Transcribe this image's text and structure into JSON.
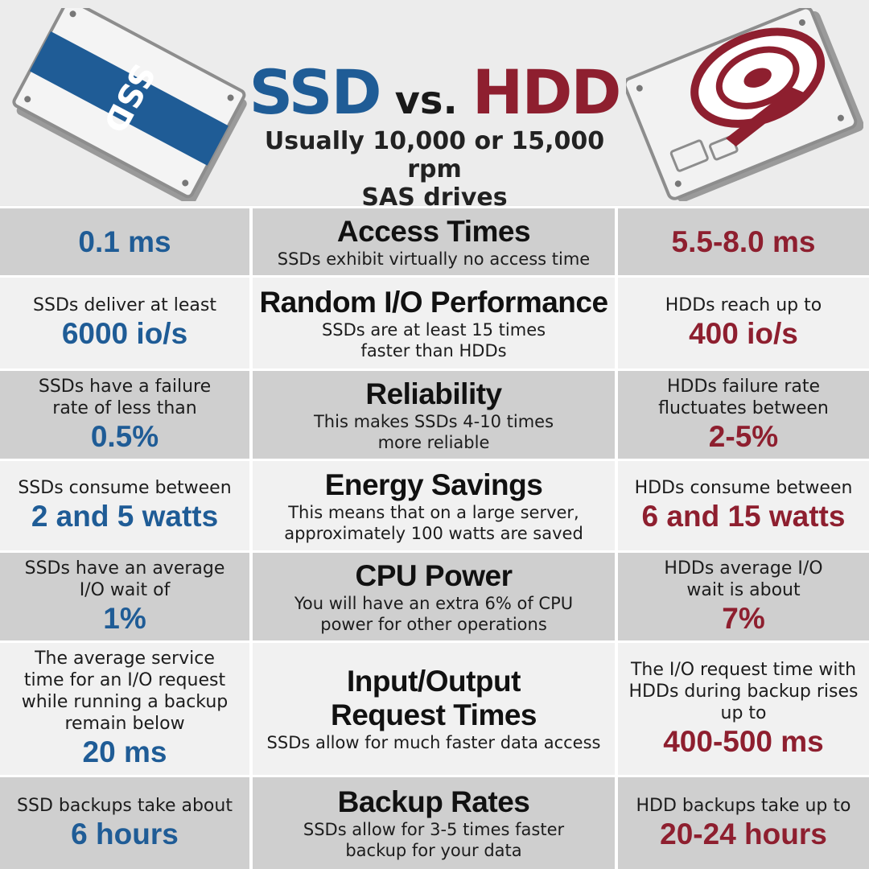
{
  "header": {
    "title_ssd": "SSD",
    "title_vs": "vs.",
    "title_hdd": "HDD",
    "subtitle_line1": "Usually 10,000 or 15,000 rpm",
    "subtitle_line2": "SAS drives",
    "ssd_label": "SSD"
  },
  "colors": {
    "ssd_blue": "#1f5c96",
    "hdd_red": "#8e1f2f",
    "row_dark": "#cfcfcf",
    "row_light": "#f1f1f1"
  },
  "rows": [
    {
      "title": "Access Times",
      "desc": "SSDs exhibit virtually no access time",
      "ssd_label": "",
      "ssd_value": "0.1 ms",
      "hdd_label": "",
      "hdd_value": "5.5-8.0 ms"
    },
    {
      "title": "Random I/O Performance",
      "desc": "SSDs are at least 15 times faster than HDDs",
      "ssd_label": "SSDs deliver at least",
      "ssd_value": "6000 io/s",
      "hdd_label": "HDDs reach up to",
      "hdd_value": "400 io/s"
    },
    {
      "title": "Reliability",
      "desc": "This makes SSDs 4-10 times more reliable",
      "ssd_label": "SSDs have a failure rate of less than",
      "ssd_value": "0.5%",
      "hdd_label": "HDDs failure rate fluctuates between",
      "hdd_value": "2-5%"
    },
    {
      "title": "Energy Savings",
      "desc": "This means that on a large server, approximately 100 watts are saved",
      "ssd_label": "SSDs consume between",
      "ssd_value": "2 and 5 watts",
      "hdd_label": "HDDs consume between",
      "hdd_value": "6 and 15 watts"
    },
    {
      "title": "CPU Power",
      "desc": "You will have an extra 6% of CPU power for other operations",
      "ssd_label": "SSDs have an average I/O wait of",
      "ssd_value": "1%",
      "hdd_label": "HDDs average I/O wait is about",
      "hdd_value": "7%"
    },
    {
      "title": "Input/Output Request Times",
      "desc": "SSDs allow for much faster data access",
      "ssd_label": "The average service time for an I/O request while running a backup remain below",
      "ssd_value": "20 ms",
      "hdd_label": "The I/O request time with HDDs during backup rises up to",
      "hdd_value": "400-500 ms"
    },
    {
      "title": "Backup Rates",
      "desc": "SSDs allow for 3-5 times faster backup for your data",
      "ssd_label": "SSD backups take about",
      "ssd_value": "6 hours",
      "hdd_label": "HDD backups take up to",
      "hdd_value": "20-24 hours"
    }
  ]
}
